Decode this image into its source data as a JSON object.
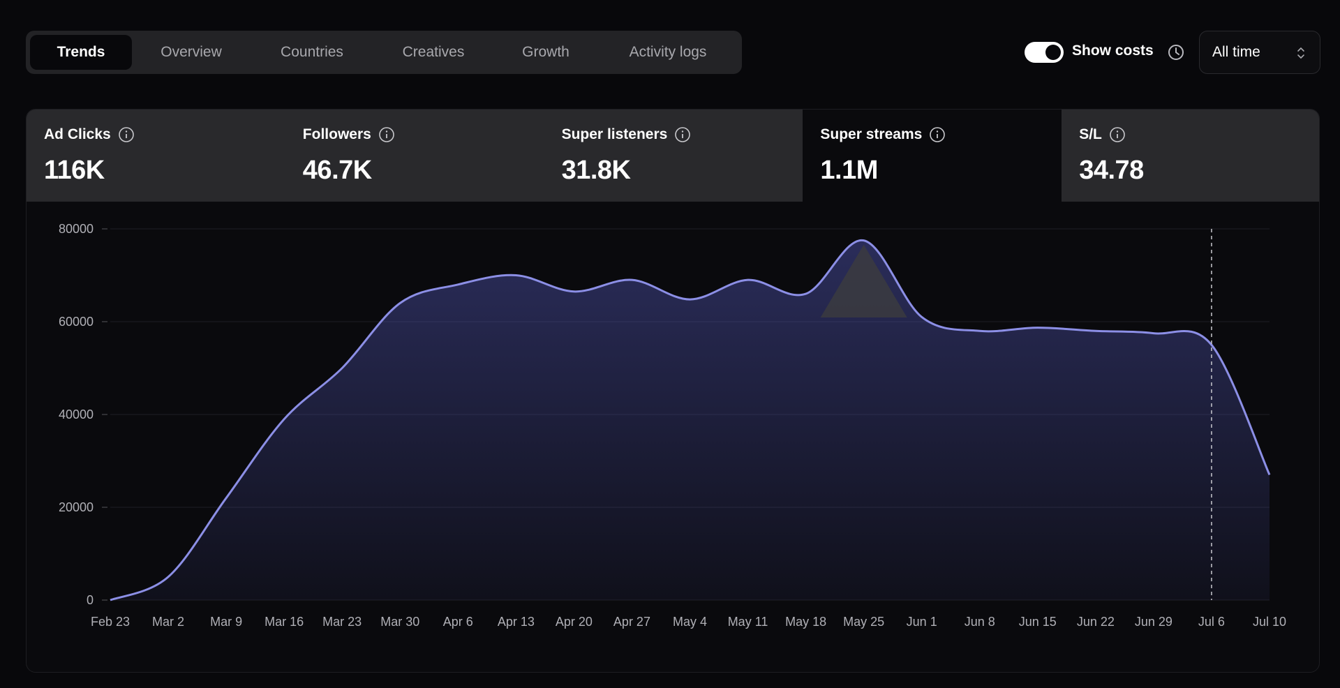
{
  "tabs": [
    {
      "label": "Trends",
      "active": true
    },
    {
      "label": "Overview",
      "active": false
    },
    {
      "label": "Countries",
      "active": false
    },
    {
      "label": "Creatives",
      "active": false
    },
    {
      "label": "Growth",
      "active": false
    },
    {
      "label": "Activity logs",
      "active": false
    }
  ],
  "controls": {
    "show_costs_label": "Show costs",
    "show_costs_on": true,
    "clock_icon": "clock-icon",
    "range_value": "All time"
  },
  "metrics": [
    {
      "label": "Ad Clicks",
      "value": "116K",
      "active": false
    },
    {
      "label": "Followers",
      "value": "46.7K",
      "active": false
    },
    {
      "label": "Super listeners",
      "value": "31.8K",
      "active": false
    },
    {
      "label": "Super streams",
      "value": "1.1M",
      "active": true
    },
    {
      "label": "S/L",
      "value": "34.78",
      "active": false
    }
  ],
  "colors": {
    "line": "#8c8fe6",
    "highlight": "#3b3b3f",
    "active_metric_bg": "#0a0a0d",
    "inactive_metric_bg": "#29292c"
  },
  "chart_data": {
    "type": "area",
    "x": [
      "Feb 23",
      "Mar 2",
      "Mar 9",
      "Mar 16",
      "Mar 23",
      "Mar 30",
      "Apr 6",
      "Apr 13",
      "Apr 20",
      "Apr 27",
      "May 4",
      "May 11",
      "May 18",
      "May 25",
      "Jun 1",
      "Jun 8",
      "Jun 15",
      "Jun 22",
      "Jun 29",
      "Jul 6",
      "Jul 10"
    ],
    "series": [
      {
        "values": [
          0,
          5000,
          22000,
          39000,
          50000,
          64000,
          68000,
          70000,
          66500,
          69000,
          64800,
          69000,
          66000,
          77500,
          61000,
          58000,
          58700,
          58000,
          57500,
          55000,
          27000
        ]
      }
    ],
    "y_ticks": [
      0,
      20000,
      40000,
      60000,
      80000
    ],
    "ylim": [
      0,
      80000
    ],
    "grid": true,
    "highlight_x": "May 25",
    "marker_x": "Jul 6"
  }
}
